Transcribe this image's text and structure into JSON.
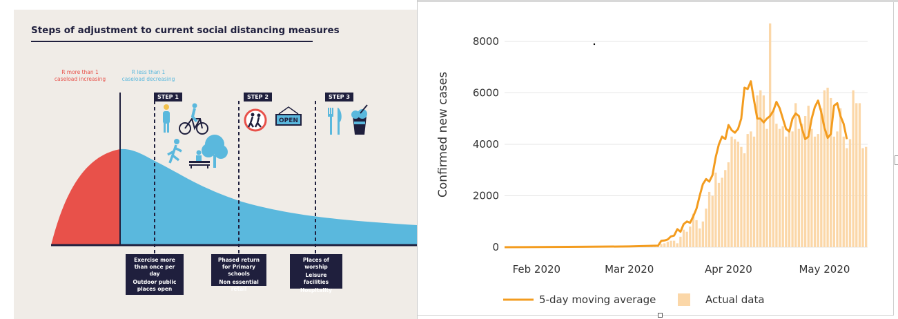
{
  "infographic": {
    "title": "Steps of adjustment to current social distancing measures",
    "phases": {
      "increasing": [
        "R more than 1",
        "caseload increasing"
      ],
      "decreasing": [
        "R less than 1",
        "caseload decreasing"
      ]
    },
    "steps": [
      {
        "label": "STEP 1",
        "measures": [
          "Exercise more than once per day",
          "Outdoor public places open"
        ]
      },
      {
        "label": "STEP 2",
        "measures": [
          "Phased return for Primary schools",
          "Non essential retail"
        ]
      },
      {
        "label": "STEP 3",
        "measures": [
          "Places of worship",
          "Leisure facilities",
          "Hospitality"
        ]
      }
    ],
    "sign_text": "OPEN",
    "colors": {
      "increasing": "#e8514a",
      "decreasing": "#5ab8dd",
      "ink": "#1f1f3d",
      "background": "#f0ece7"
    }
  },
  "chart_data": {
    "type": "bar",
    "ylabel": "Confirmed new cases",
    "xlabel": "",
    "ylim": [
      0,
      8500
    ],
    "yticks": [
      0,
      2000,
      4000,
      6000,
      8000
    ],
    "xticks": [
      "Feb 2020",
      "Mar 2020",
      "Apr 2020",
      "May 2020"
    ],
    "x_start": "2020-01-22",
    "x_tick_dates": [
      "2020-02-01",
      "2020-03-01",
      "2020-04-01",
      "2020-05-01"
    ],
    "grid": "horizontal",
    "legend_position": "bottom",
    "series": [
      {
        "name": "Actual data",
        "kind": "bar",
        "color": "#fbd7a8",
        "start_date": "2020-03-01",
        "values": [
          12,
          5,
          25,
          12,
          20,
          30,
          48,
          40,
          60,
          75,
          125,
          150,
          210,
          250,
          252,
          152,
          407,
          680,
          600,
          800,
          1300,
          1050,
          730,
          1000,
          1500,
          2150,
          2000,
          2900,
          2500,
          2700,
          3000,
          3300,
          4300,
          4200,
          4100,
          3900,
          3650,
          4400,
          4500,
          4300,
          5900,
          6100,
          5900,
          4600,
          8700,
          5300,
          4800,
          4600,
          4700,
          4300,
          4600,
          4500,
          5600,
          4600,
          4800,
          5100,
          5500,
          4600,
          4300,
          4400,
          5400,
          6100,
          6200,
          5800,
          4300,
          4500,
          5400,
          4300,
          3850,
          4200,
          6100,
          5600,
          5600,
          3850,
          3900
        ]
      },
      {
        "name": "5-day moving average",
        "kind": "line",
        "color": "#f39c1f",
        "dates": [
          "2020-01-22",
          "2020-02-15",
          "2020-03-01",
          "2020-03-10",
          "2020-03-11",
          "2020-03-12",
          "2020-03-13",
          "2020-03-14",
          "2020-03-15",
          "2020-03-16",
          "2020-03-17",
          "2020-03-18",
          "2020-03-19",
          "2020-03-20",
          "2020-03-21",
          "2020-03-22",
          "2020-03-23",
          "2020-03-24",
          "2020-03-25",
          "2020-03-26",
          "2020-03-27",
          "2020-03-28",
          "2020-03-29",
          "2020-03-30",
          "2020-03-31",
          "2020-04-01",
          "2020-04-02",
          "2020-04-03",
          "2020-04-04",
          "2020-04-05",
          "2020-04-06",
          "2020-04-07",
          "2020-04-08",
          "2020-04-09",
          "2020-04-10",
          "2020-04-11",
          "2020-04-12",
          "2020-04-13",
          "2020-04-14",
          "2020-04-15",
          "2020-04-16",
          "2020-04-17",
          "2020-04-18",
          "2020-04-19",
          "2020-04-20",
          "2020-04-21",
          "2020-04-22",
          "2020-04-23",
          "2020-04-24",
          "2020-04-25",
          "2020-04-26",
          "2020-04-27",
          "2020-04-28",
          "2020-04-29",
          "2020-04-30",
          "2020-05-01",
          "2020-05-02",
          "2020-05-03",
          "2020-05-04",
          "2020-05-05",
          "2020-05-06",
          "2020-05-07",
          "2020-05-08"
        ],
        "values": [
          0,
          15,
          30,
          60,
          250,
          260,
          300,
          420,
          450,
          700,
          600,
          900,
          1000,
          950,
          1200,
          1500,
          2000,
          2450,
          2650,
          2550,
          2800,
          3500,
          4000,
          4300,
          4200,
          4750,
          4550,
          4450,
          4600,
          5000,
          6200,
          6150,
          6450,
          5700,
          5000,
          5000,
          4850,
          5000,
          5100,
          5300,
          5650,
          5400,
          5000,
          4600,
          4500,
          5000,
          5200,
          5100,
          4600,
          4200,
          4300,
          5000,
          5450,
          5700,
          5250,
          4650,
          4250,
          4400,
          5500,
          5600,
          5100,
          4800,
          4200
        ]
      }
    ]
  }
}
